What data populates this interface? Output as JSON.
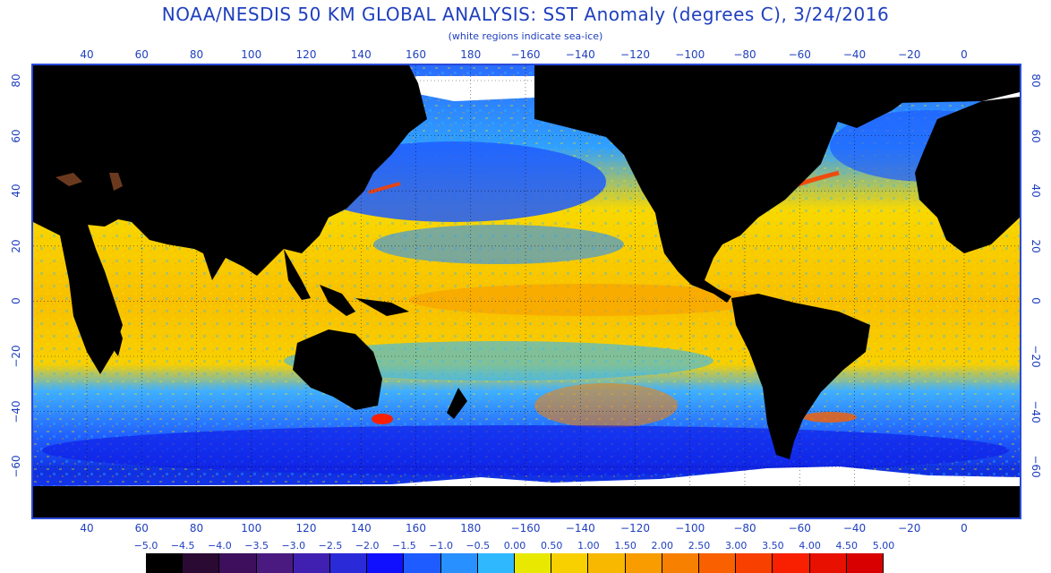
{
  "title": "NOAA/NESDIS 50 KM GLOBAL ANALYSIS: SST Anomaly (degrees C), 3/24/2016",
  "subtitle": "(white regions indicate sea-ice)",
  "axis": {
    "lon_labels": [
      "40",
      "60",
      "80",
      "100",
      "120",
      "140",
      "160",
      "180",
      "−160",
      "−140",
      "−120",
      "−100",
      "−80",
      "−60",
      "−40",
      "−20",
      "0"
    ],
    "lat_labels": [
      "80",
      "60",
      "40",
      "20",
      "0",
      "−20",
      "−40",
      "−60"
    ]
  },
  "colorbar": {
    "labels": [
      "−5.0",
      "−4.5",
      "−4.0",
      "−3.5",
      "−3.0",
      "−2.5",
      "−2.0",
      "−1.5",
      "−1.0",
      "−0.5",
      "0.00",
      "0.50",
      "1.00",
      "1.50",
      "2.00",
      "2.50",
      "3.00",
      "3.50",
      "4.00",
      "4.50",
      "5.00"
    ],
    "colors": [
      "#000000",
      "#2a0a33",
      "#3d0f5c",
      "#4a1a80",
      "#4020b0",
      "#2a2ad8",
      "#1010ff",
      "#1e5cff",
      "#2890ff",
      "#30b8ff",
      "#e8e800",
      "#f8d000",
      "#f8b800",
      "#f89c00",
      "#f88000",
      "#f86000",
      "#f84000",
      "#f82000",
      "#e81000",
      "#d80000"
    ]
  },
  "map": {
    "land_color": "#000000",
    "ice_color": "#ffffff",
    "grid_color": "#000000"
  }
}
